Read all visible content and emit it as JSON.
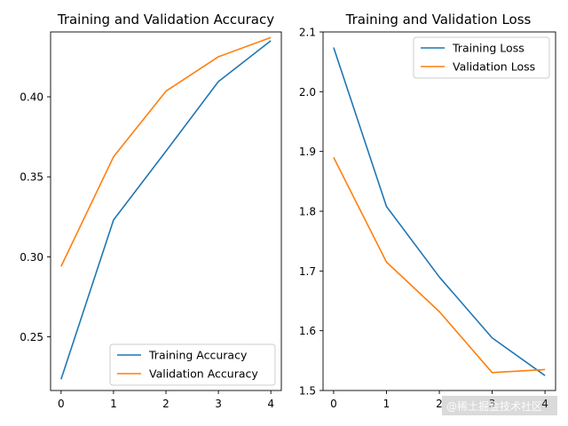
{
  "chart_data": [
    {
      "type": "line",
      "title": "Training and Validation Accuracy",
      "xlabel": "",
      "ylabel": "",
      "x": [
        0,
        1,
        2,
        3,
        4
      ],
      "xticks": [
        "0",
        "1",
        "2",
        "3",
        "4"
      ],
      "xlim": [
        -0.2,
        4.2
      ],
      "yticks": [
        "0.25",
        "0.30",
        "0.35",
        "0.40"
      ],
      "ytick_values": [
        0.25,
        0.3,
        0.35,
        0.4
      ],
      "ylim": [
        0.2165,
        0.4405
      ],
      "legend_position": "lower-right",
      "series": [
        {
          "name": "Training Accuracy",
          "color": "#1f77b4",
          "values": [
            0.2235,
            0.323,
            0.366,
            0.4095,
            0.435
          ]
        },
        {
          "name": "Validation Accuracy",
          "color": "#ff7f0e",
          "values": [
            0.294,
            0.3625,
            0.4035,
            0.425,
            0.437
          ]
        }
      ]
    },
    {
      "type": "line",
      "title": "Training and Validation Loss",
      "xlabel": "",
      "ylabel": "",
      "x": [
        0,
        1,
        2,
        3,
        4
      ],
      "xticks": [
        "0",
        "1",
        "2",
        "3",
        "4"
      ],
      "xlim": [
        -0.2,
        4.2
      ],
      "yticks": [
        "1.5",
        "1.6",
        "1.7",
        "1.8",
        "1.9",
        "2.0",
        "2.1"
      ],
      "ytick_values": [
        1.5,
        1.6,
        1.7,
        1.8,
        1.9,
        2.0,
        2.1
      ],
      "ylim": [
        1.5,
        2.1
      ],
      "legend_position": "upper-right",
      "series": [
        {
          "name": "Training Loss",
          "color": "#1f77b4",
          "values": [
            2.074,
            1.808,
            1.69,
            1.588,
            1.525
          ]
        },
        {
          "name": "Validation Loss",
          "color": "#ff7f0e",
          "values": [
            1.89,
            1.715,
            1.632,
            1.53,
            1.535
          ]
        }
      ]
    }
  ],
  "watermark": "@稀土掘金技术社区"
}
